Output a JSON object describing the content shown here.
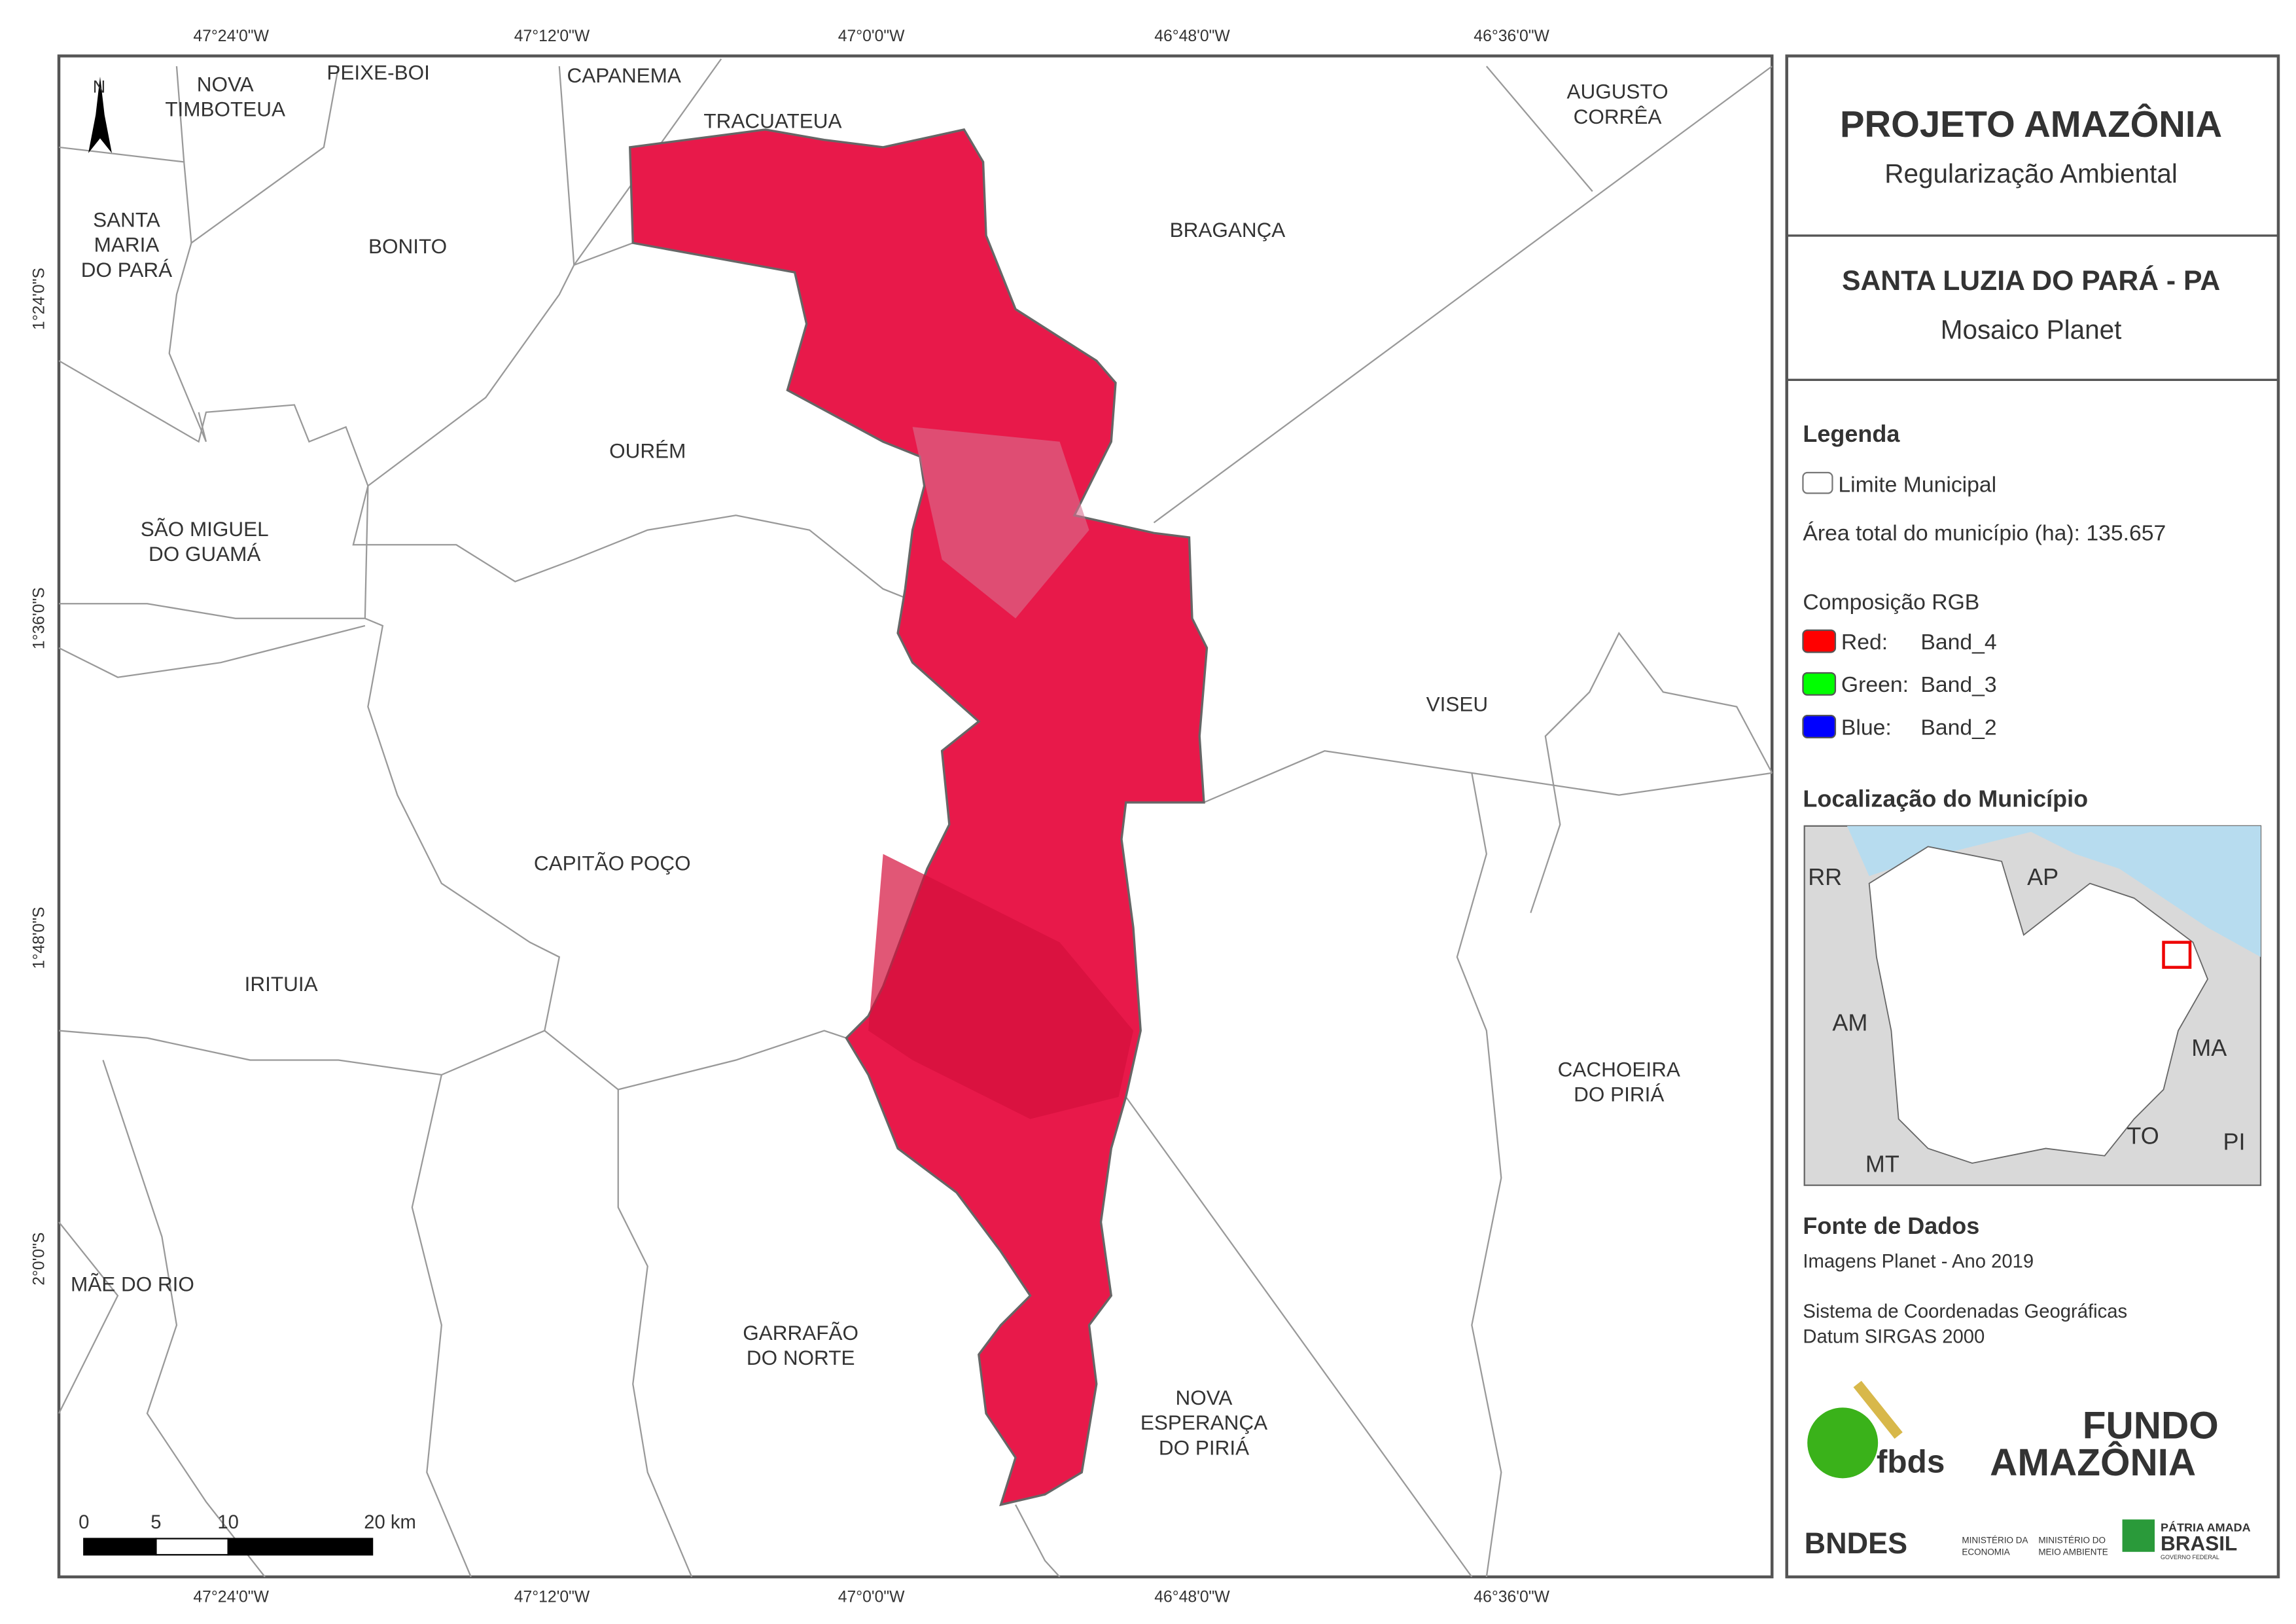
{
  "map": {
    "top_ticks": [
      "47°24'0\"W",
      "47°12'0\"W",
      "47°0'0\"W",
      "46°48'0\"W",
      "46°36'0\"W"
    ],
    "bottom_ticks": [
      "47°24'0\"W",
      "47°12'0\"W",
      "47°0'0\"W",
      "46°48'0\"W",
      "46°36'0\"W"
    ],
    "left_ticks": [
      "1°24'0\"S",
      "1°36'0\"S",
      "1°48'0\"S",
      "2°0'0\"S"
    ],
    "north": "N",
    "municipalities": [
      [
        "NOVA",
        "TIMBOTEUA"
      ],
      [
        "PEIXE-BOI"
      ],
      [
        "CAPANEMA"
      ],
      [
        "TRACUATEUA"
      ],
      [
        "AUGUSTO",
        "CORRÊA"
      ],
      [
        "SANTA",
        "MARIA",
        "DO PARÁ"
      ],
      [
        "BONITO"
      ],
      [
        "BRAGANÇA"
      ],
      [
        "OURÉM"
      ],
      [
        "SÃO MIGUEL",
        "DO GUAMÁ"
      ],
      [
        "VISEU"
      ],
      [
        "CAPITÃO POÇO"
      ],
      [
        "IRITUIA"
      ],
      [
        "CACHOEIRA",
        "DO PIRIÁ"
      ],
      [
        "MÃE DO RIO"
      ],
      [
        "GARRAFÃO",
        "DO NORTE"
      ],
      [
        "NOVA",
        "ESPERANÇA",
        "DO PIRIÁ"
      ]
    ],
    "scale_labels": [
      "0",
      "5",
      "10",
      "20 km"
    ]
  },
  "panel": {
    "title": "PROJETO AMAZÔNIA",
    "subtitle": "Regularização Ambiental",
    "municipality": "SANTA LUZIA DO PARÁ - PA",
    "mosaic": "Mosaico Planet",
    "legend_title": "Legenda",
    "limit": "Limite Municipal",
    "area": "Área total do município (ha): 135.657",
    "rgb_title": "Composição RGB",
    "bands": [
      {
        "channel": "Red:",
        "band": "Band_4",
        "color": "#ff0000"
      },
      {
        "channel": "Green:",
        "band": "Band_3",
        "color": "#00ff00"
      },
      {
        "channel": "Blue:",
        "band": "Band_2",
        "color": "#0000ff"
      }
    ],
    "location_title": "Localização do Município",
    "inset_labels": [
      "RR",
      "AP",
      "AM",
      "MA",
      "TO",
      "PI",
      "MT"
    ],
    "source_title": "Fonte de Dados",
    "source": "Imagens Planet - Ano 2019",
    "crs": "Sistema de Coordenadas Geográficas",
    "datum": "Datum SIRGAS 2000",
    "logos": {
      "fbds": "fbds",
      "fundo": "FUNDO",
      "amazonia": "AMAZÔNIA",
      "bndes": "BNDES",
      "min1": [
        "MINISTÉRIO DA",
        "ECONOMIA"
      ],
      "min2": [
        "MINISTÉRIO DO",
        "MEIO AMBIENTE"
      ],
      "patria": "PÁTRIA AMADA",
      "brasil": "BRASIL",
      "gov": "GOVERNO FEDERAL"
    }
  }
}
